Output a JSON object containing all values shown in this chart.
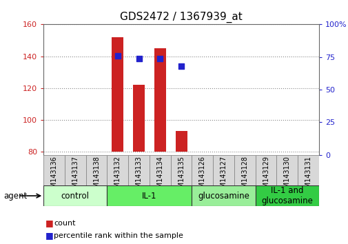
{
  "title": "GDS2472 / 1367939_at",
  "samples": [
    "GSM143136",
    "GSM143137",
    "GSM143138",
    "GSM143132",
    "GSM143133",
    "GSM143134",
    "GSM143135",
    "GSM143126",
    "GSM143127",
    "GSM143128",
    "GSM143129",
    "GSM143130",
    "GSM143131"
  ],
  "counts": [
    80,
    80,
    80,
    152,
    122,
    145,
    93,
    80,
    80,
    80,
    80,
    80,
    80
  ],
  "percentile_ranks": [
    null,
    null,
    null,
    76,
    74,
    74,
    68,
    null,
    null,
    null,
    null,
    null,
    null
  ],
  "groups": [
    {
      "label": "control",
      "start": 0,
      "end": 3,
      "color": "#ccffcc"
    },
    {
      "label": "IL-1",
      "start": 3,
      "end": 7,
      "color": "#66ee66"
    },
    {
      "label": "glucosamine",
      "start": 7,
      "end": 10,
      "color": "#99ee99"
    },
    {
      "label": "IL-1 and\nglucosamine",
      "start": 10,
      "end": 13,
      "color": "#33cc44"
    }
  ],
  "ylim_left": [
    78,
    160
  ],
  "ylim_right": [
    0,
    100
  ],
  "yticks_left": [
    80,
    100,
    120,
    140,
    160
  ],
  "yticks_right": [
    0,
    25,
    50,
    75,
    100
  ],
  "ytick_right_labels": [
    "0",
    "25",
    "50",
    "75",
    "100%"
  ],
  "bar_color": "#cc2222",
  "dot_color": "#2222cc",
  "bar_bottom": 80,
  "bar_width": 0.55,
  "dot_size": 40,
  "grid_color": "#888888",
  "bg_color": "#ffffff",
  "left_label_color": "#cc2222",
  "right_label_color": "#2222cc",
  "agent_label": "agent",
  "legend_count_label": "count",
  "legend_pct_label": "percentile rank within the sample",
  "title_fontsize": 11,
  "tick_fontsize": 8,
  "group_label_fontsize": 8.5,
  "legend_fontsize": 8,
  "sample_fontsize": 7
}
